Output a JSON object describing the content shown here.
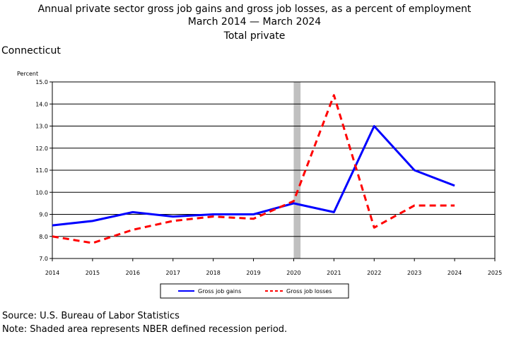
{
  "header": {
    "title_line1": "Annual private sector gross job gains and gross job losses, as a percent of employment",
    "title_line2": "March 2014 — March 2024",
    "title_line3": "Total private",
    "region": "Connecticut"
  },
  "footer": {
    "source": "Source: U.S. Bureau of Labor Statistics",
    "note": "Note: Shaded area represents NBER defined recession period."
  },
  "chart_data": {
    "type": "line",
    "title": "Annual private sector gross job gains and gross job losses, as a percent of employment",
    "subtitle": "Total private",
    "ylabel": "Percent",
    "xlabel": "",
    "xlim": [
      2014,
      2025
    ],
    "ylim": [
      7.0,
      15.0
    ],
    "x_ticks": [
      "2014",
      "2015",
      "2016",
      "2017",
      "2018",
      "2019",
      "2020",
      "2021",
      "2022",
      "2023",
      "2024",
      "2025"
    ],
    "y_ticks": [
      "7.0",
      "8.0",
      "9.0",
      "10.0",
      "11.0",
      "12.0",
      "13.0",
      "14.0",
      "15.0"
    ],
    "grid": true,
    "legend_position": "bottom",
    "recession_shading": {
      "start": 2020.0,
      "end": 2020.17
    },
    "x": [
      2014,
      2015,
      2016,
      2017,
      2018,
      2019,
      2020,
      2021,
      2022,
      2023,
      2024
    ],
    "series": [
      {
        "name": "Gross job gains",
        "color": "#0000ff",
        "style": "solid",
        "values": [
          8.5,
          8.7,
          9.1,
          8.9,
          9.0,
          9.0,
          9.5,
          9.1,
          13.0,
          11.0,
          10.3
        ]
      },
      {
        "name": "Gross job losses",
        "color": "#ff0000",
        "style": "dashed",
        "values": [
          8.0,
          7.7,
          8.3,
          8.7,
          8.9,
          8.8,
          9.6,
          14.4,
          8.4,
          9.4,
          9.4
        ]
      }
    ]
  }
}
